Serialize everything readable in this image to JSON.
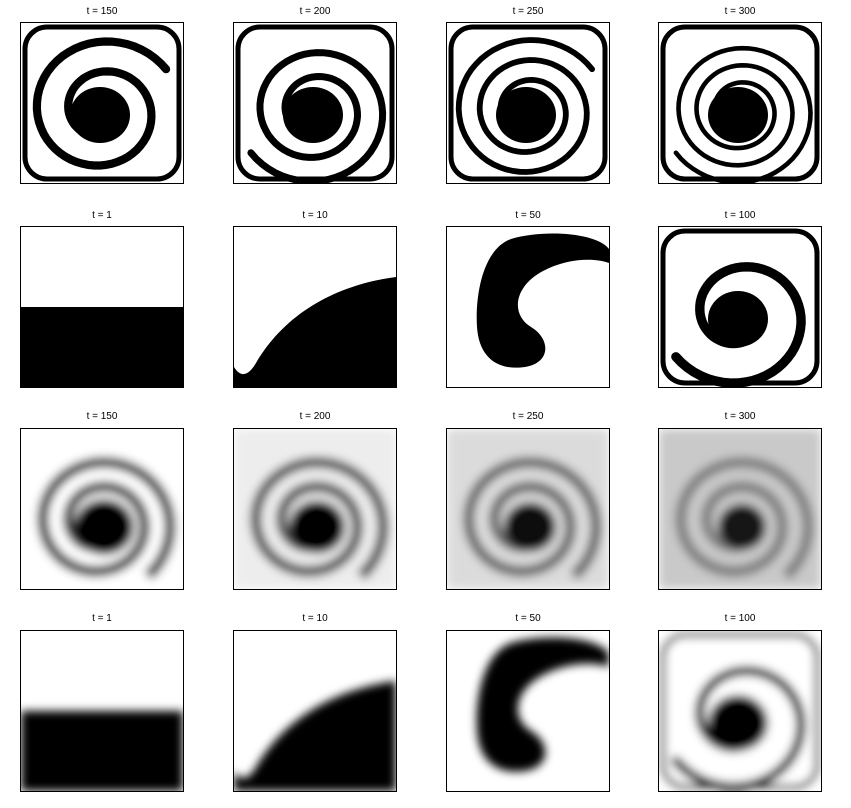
{
  "rows": [
    {
      "style": "sharp",
      "panels": [
        {
          "title": "t = 150",
          "kind": "spiral",
          "turns": 2.0
        },
        {
          "title": "t = 200",
          "kind": "spiral",
          "turns": 2.5
        },
        {
          "title": "t = 250",
          "kind": "spiral",
          "turns": 3.0
        },
        {
          "title": "t = 300",
          "kind": "spiral",
          "turns": 3.5
        }
      ]
    },
    {
      "style": "sharp",
      "panels": [
        {
          "title": "t = 1",
          "kind": "flat"
        },
        {
          "title": "t = 10",
          "kind": "dome"
        },
        {
          "title": "t = 50",
          "kind": "hook"
        },
        {
          "title": "t = 100",
          "kind": "spiral",
          "turns": 1.5
        }
      ]
    },
    {
      "style": "blurred",
      "panels": [
        {
          "title": "t = 150",
          "kind": "swirl",
          "contrast": 1.0
        },
        {
          "title": "t = 200",
          "kind": "swirl",
          "contrast": 0.8
        },
        {
          "title": "t = 250",
          "kind": "swirl",
          "contrast": 0.6
        },
        {
          "title": "t = 300",
          "kind": "swirl",
          "contrast": 0.4
        }
      ]
    },
    {
      "style": "blurred",
      "panels": [
        {
          "title": "t = 1",
          "kind": "flat"
        },
        {
          "title": "t = 10",
          "kind": "dome"
        },
        {
          "title": "t = 50",
          "kind": "hook"
        },
        {
          "title": "t = 100",
          "kind": "spiral",
          "turns": 1.5
        }
      ]
    }
  ]
}
